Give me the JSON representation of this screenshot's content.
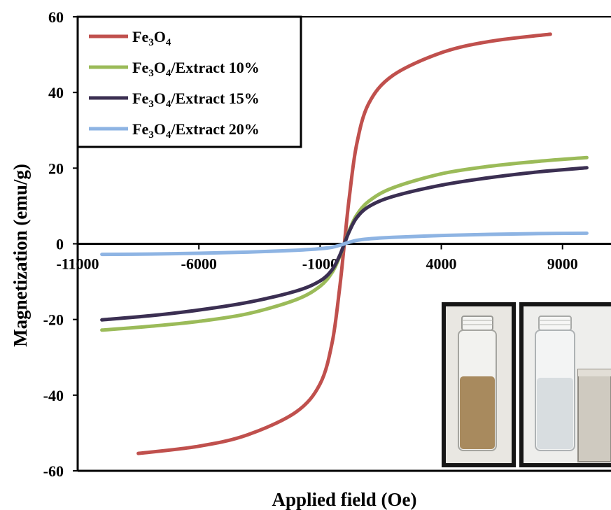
{
  "chart_data": {
    "type": "line",
    "xlabel": "Applied field (Oe)",
    "ylabel": "Magnetization (emu/g)",
    "xlim": [
      -11000,
      11000
    ],
    "ylim": [
      -60,
      60
    ],
    "x_ticks": [
      -11000,
      -6000,
      -1000,
      4000,
      9000
    ],
    "y_ticks": [
      60,
      40,
      20,
      0,
      -20,
      -40,
      -60
    ],
    "grid": false,
    "legend_position": "top-left",
    "series": [
      {
        "name_main": "Fe",
        "name_sub1": "3",
        "name_mid": "O",
        "name_sub2": "4",
        "name_suffix": "",
        "color": "#c0504d",
        "x": [
          -8500,
          -6000,
          -4000,
          -2000,
          -1000,
          -500,
          -200,
          0,
          200,
          500,
          1000,
          2000,
          4000,
          6000,
          8500
        ],
        "y": [
          -55.4,
          -53.5,
          -50.5,
          -44.5,
          -37,
          -26,
          -12,
          0,
          12,
          26,
          37,
          44.5,
          50.5,
          53.5,
          55.4
        ]
      },
      {
        "name_main": "Fe",
        "name_sub1": "3",
        "name_mid": "O",
        "name_sub2": "4",
        "name_suffix": "/Extract  10%",
        "color": "#9bbb59",
        "x": [
          -10000,
          -8000,
          -6000,
          -4000,
          -2000,
          -1000,
          -500,
          -200,
          0,
          200,
          500,
          1000,
          2000,
          4000,
          6000,
          8000,
          10000
        ],
        "y": [
          -22.8,
          -21.8,
          -20.5,
          -18.5,
          -14.8,
          -11.2,
          -7.5,
          -3.5,
          0,
          3.5,
          7.5,
          11.2,
          14.8,
          18.5,
          20.5,
          21.8,
          22.8
        ]
      },
      {
        "name_main": "Fe",
        "name_sub1": "3",
        "name_mid": "O",
        "name_sub2": "4",
        "name_suffix": "/Extract  15%",
        "color": "#3b2f52",
        "x": [
          -10000,
          -8000,
          -6000,
          -4000,
          -2000,
          -1000,
          -500,
          -200,
          0,
          200,
          500,
          1000,
          2000,
          4000,
          6000,
          8000,
          10000
        ],
        "y": [
          -20.1,
          -19,
          -17.5,
          -15.5,
          -12.5,
          -9.8,
          -6.8,
          -3.2,
          0,
          3.2,
          6.8,
          9.8,
          12.5,
          15.5,
          17.5,
          19,
          20.1
        ]
      },
      {
        "name_main": "Fe",
        "name_sub1": "3",
        "name_mid": "O",
        "name_sub2": "4",
        "name_suffix": "/Extract  20%",
        "color": "#8eb4e3",
        "x": [
          -10000,
          -8000,
          -6000,
          -4000,
          -2000,
          -1000,
          -500,
          -200,
          0,
          200,
          500,
          1000,
          2000,
          4000,
          6000,
          8000,
          10000
        ],
        "y": [
          -2.8,
          -2.7,
          -2.5,
          -2.2,
          -1.7,
          -1.3,
          -0.9,
          -0.4,
          0,
          0.4,
          0.9,
          1.3,
          1.7,
          2.2,
          2.5,
          2.7,
          2.8
        ]
      }
    ]
  },
  "inset": {
    "vial_left_fill": "#a88a5e",
    "vial_right_fill": "#d8dde0",
    "magnet_fill": "#cfcac0"
  }
}
